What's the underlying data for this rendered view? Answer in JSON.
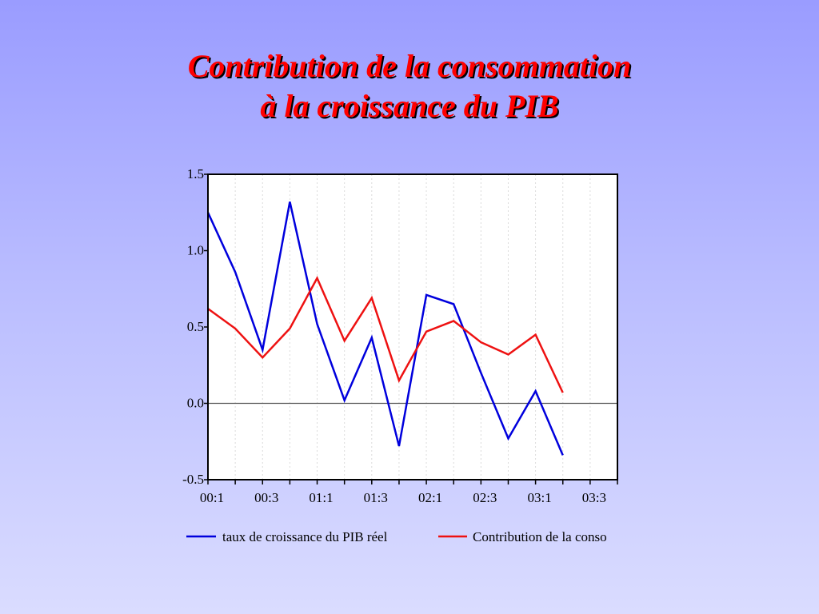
{
  "title": {
    "line1": "Contribution de la consommation",
    "line2": "à la croissance du PIB"
  },
  "chart_data": {
    "type": "line",
    "x_tick_labels": [
      "00:1",
      "00:3",
      "01:1",
      "01:3",
      "02:1",
      "02:3",
      "03:1",
      "03:3"
    ],
    "y_tick_labels": [
      "1.5",
      "1.0",
      "0.5",
      "0.0",
      "-0.5"
    ],
    "ylim": [
      -0.5,
      1.5
    ],
    "quarters": [
      "00:1",
      "00:2",
      "00:3",
      "00:4",
      "01:1",
      "01:2",
      "01:3",
      "01:4",
      "02:1",
      "02:2",
      "02:3",
      "02:4",
      "03:1",
      "03:2",
      "03:3",
      "03:4"
    ],
    "series": [
      {
        "name": "taux de croissance du PIB réel",
        "color": "#0000dd",
        "values": [
          1.25,
          0.86,
          0.35,
          1.32,
          0.52,
          0.02,
          0.43,
          -0.28,
          0.71,
          0.65,
          0.2,
          -0.23,
          0.08,
          -0.34
        ]
      },
      {
        "name": "Contribution de la conso",
        "color": "#ee1111",
        "values": [
          0.62,
          0.49,
          0.3,
          0.49,
          0.82,
          0.41,
          0.69,
          0.15,
          0.47,
          0.54,
          0.4,
          0.32,
          0.45,
          0.07
        ]
      }
    ],
    "zero_line": true,
    "legend_position": "bottom"
  }
}
